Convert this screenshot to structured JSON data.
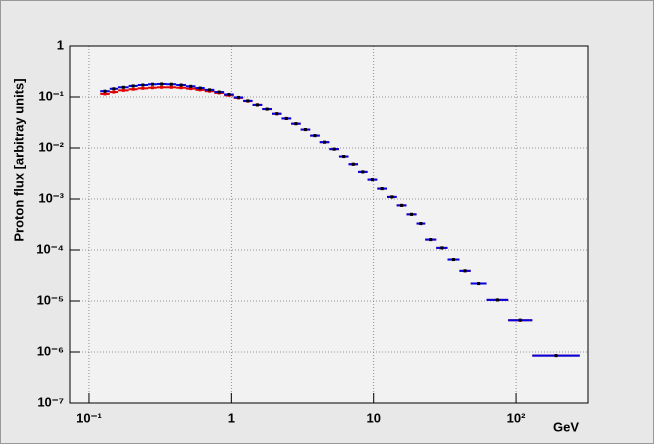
{
  "chart_data": {
    "type": "histogram",
    "x_label": "GeV",
    "y_label": "Proton flux [arbitray units]",
    "log_x": true,
    "log_y": true,
    "grid": true,
    "xlim": [
      0.0736,
      320
    ],
    "ylim": [
      1e-07,
      1
    ],
    "xticks": [
      {
        "value": 0.1,
        "label": "10⁻¹"
      },
      1,
      10,
      {
        "value": 100,
        "label": "10²"
      }
    ],
    "yticks": [
      {
        "value": 1e-07,
        "label": "10⁻⁷"
      },
      {
        "value": 1e-06,
        "label": "10⁻⁶"
      },
      {
        "value": 1e-05,
        "label": "10⁻⁵"
      },
      {
        "value": 0.0001,
        "label": "10⁻⁴"
      },
      {
        "value": 0.001,
        "label": "10⁻³"
      },
      {
        "value": 0.01,
        "label": "10⁻²"
      },
      {
        "value": 0.1,
        "label": "10⁻¹"
      },
      1
    ],
    "bins": [
      0.12,
      0.14,
      0.16,
      0.19,
      0.22,
      0.26,
      0.3,
      0.35,
      0.41,
      0.48,
      0.56,
      0.65,
      0.76,
      0.89,
      1.04,
      1.21,
      1.41,
      1.65,
      1.93,
      2.25,
      2.63,
      3.07,
      3.58,
      4.18,
      4.88,
      5.7,
      6.65,
      7.76,
      9.06,
      10.6,
      12.4,
      14.5,
      17,
      20,
      23,
      27.5,
      33,
      40,
      48,
      62,
      88,
      130,
      280
    ],
    "series": [
      {
        "color": "#e00000",
        "values": [
          0.115,
          0.125,
          0.135,
          0.142,
          0.148,
          0.152,
          0.155,
          0.155,
          0.152,
          0.146,
          0.138,
          0.13,
          0.12,
          0.108,
          0.096,
          0.083,
          0.07,
          0.058,
          0.047,
          0.038,
          0.03,
          0.023,
          0.0175,
          0.013,
          0.0095,
          0.0068,
          0.0048,
          0.0034,
          0.0024,
          0.0016,
          0.0011,
          0.00075,
          0.0005,
          0.00033,
          0.00016,
          0.00011,
          6.5e-05,
          3.9e-05,
          2.2e-05,
          1.05e-05,
          4.2e-06,
          8.5e-07
        ]
      },
      {
        "color": "#0000e0",
        "values": [
          0.13,
          0.145,
          0.155,
          0.165,
          0.172,
          0.178,
          0.18,
          0.178,
          0.172,
          0.162,
          0.15,
          0.138,
          0.125,
          0.112,
          0.098,
          0.084,
          0.07,
          0.058,
          0.047,
          0.038,
          0.03,
          0.023,
          0.0175,
          0.013,
          0.0095,
          0.0068,
          0.0048,
          0.0034,
          0.0024,
          0.0016,
          0.0011,
          0.00075,
          0.0005,
          0.00033,
          0.00016,
          0.00011,
          6.5e-05,
          3.9e-05,
          2.2e-05,
          1.05e-05,
          4.2e-06,
          8.5e-07
        ]
      }
    ]
  }
}
